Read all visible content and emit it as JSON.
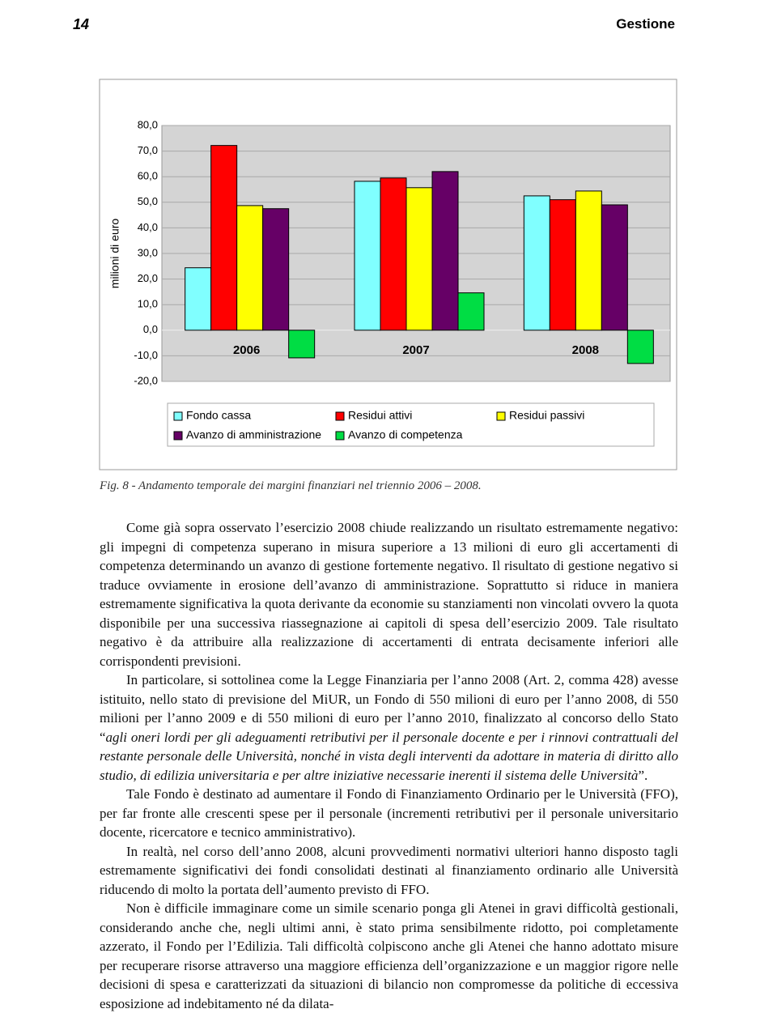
{
  "header": {
    "page_number": "14",
    "section": "Gestione"
  },
  "chart_data": {
    "type": "bar",
    "y_label": "milioni di euro",
    "categories": [
      "2006",
      "2007",
      "2008"
    ],
    "series": [
      {
        "name": "Fondo cassa",
        "color": "#80ffff",
        "values": [
          24.4,
          58.2,
          52.5
        ]
      },
      {
        "name": "Residui attivi",
        "color": "#ff0000",
        "values": [
          72.2,
          59.5,
          51
        ]
      },
      {
        "name": "Residui  passivi",
        "color": "#ffff00",
        "values": [
          48.7,
          55.7,
          54.4
        ]
      },
      {
        "name": "Avanzo di amministrazione",
        "color": "#660066",
        "values": [
          47.5,
          62,
          49
        ]
      },
      {
        "name": "Avanzo di competenza",
        "color": "#00dd44",
        "values": [
          -10.8,
          14.6,
          -13
        ]
      }
    ],
    "ylim": [
      -20,
      80
    ],
    "yticks": [
      {
        "value": -20,
        "label": "-20,0"
      },
      {
        "value": -10,
        "label": "-10,0"
      },
      {
        "value": 0,
        "label": "0,0"
      },
      {
        "value": 10,
        "label": "10,0"
      },
      {
        "value": 20,
        "label": "20,0"
      },
      {
        "value": 30,
        "label": "30,0"
      },
      {
        "value": 40,
        "label": "40,0"
      },
      {
        "value": 50,
        "label": "50,0"
      },
      {
        "value": 60,
        "label": "60,0"
      },
      {
        "value": 70,
        "label": "70,0"
      },
      {
        "value": 80,
        "label": "80,0"
      }
    ],
    "grid": true
  },
  "caption": "Fig. 8 - Andamento temporale dei margini finanziari nel triennio 2006 – 2008.",
  "paragraphs": [
    "Come già sopra osservato l’esercizio 2008 chiude realizzando un risultato estremamente negativo: gli impegni di competenza superano in misura superiore a 13 milioni di euro gli accertamenti di competenza determinando un avanzo di gestione fortemente negativo. Il risultato di gestione negativo si traduce ovviamente in erosione dell’avanzo di amministrazione. Soprattutto si riduce in maniera estremamente significativa la quota derivante da economie su stanziamenti non vincolati ovvero la quota disponibile per una successiva riassegnazione ai capitoli di spesa dell’esercizio 2009. Tale risultato negativo è da attribuire alla realizzazione di accertamenti di entrata decisamente inferiori alle corrispondenti previsioni.",
    {
      "before": "In particolare, si sottolinea come la Legge Finanziaria per l’anno 2008 (Art. 2, comma 428) avesse istituito, nello stato di previsione del MiUR, un Fondo di 550 milioni di euro per l’anno 2008, di 550 milioni per l’anno 2009 e di 550 milioni di euro per l’anno 2010, finalizzato al concorso dello Stato “",
      "quote": "agli oneri lordi per gli adeguamenti retributivi per il personale docente e per i rinnovi contrattuali del restante personale delle Università, nonché in vista degli interventi da adottare in materia di diritto allo studio, di edilizia universitaria e per altre iniziative necessarie inerenti il sistema delle Università",
      "after": "”."
    },
    "Tale Fondo è destinato ad aumentare il Fondo di Finanziamento Ordinario per le Università (FFO), per far fronte alle crescenti spese per il personale (incrementi retributivi per il personale universitario docente, ricercatore e tecnico amministrativo).",
    "In realtà, nel corso dell’anno 2008, alcuni provvedimenti normativi ulteriori hanno disposto tagli estremamente significativi dei fondi consolidati destinati al finanziamento ordinario alle Università riducendo di molto la portata dell’aumento previsto di FFO.",
    "Non è difficile immaginare come un simile scenario ponga gli Atenei in gravi difficoltà gestionali, considerando anche che, negli ultimi anni, è stato prima sensibilmente ridotto, poi completamente azzerato, il Fondo per l’Edilizia. Tali difficoltà colpiscono anche gli Atenei che hanno adottato misure per recuperare risorse attraverso una maggiore efficienza dell’organizzazione e un maggior rigore nelle decisioni di spesa e caratterizzati da situazioni di bilancio non compromesse da politiche di eccessiva esposizione ad indebitamento né da dilata-"
  ]
}
